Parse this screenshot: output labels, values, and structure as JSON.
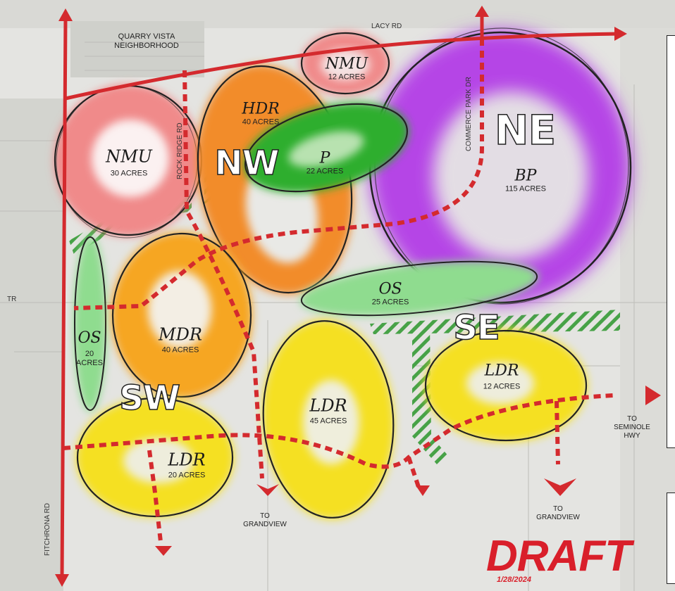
{
  "map": {
    "roads": {
      "lacy": "LACY RD",
      "rock_ridge": "ROCK RIDGE RD",
      "commerce_park": "COMMERCE PARK DR",
      "fitchrona": "FITCHRONA   RD",
      "edge_left": "TR"
    },
    "neighborhood": "QUARRY VISTA\nNEIGHBORHOOD",
    "quadrants": {
      "nw": "NW",
      "ne": "NE",
      "sw": "SW",
      "se": "SE"
    },
    "zones": [
      {
        "code": "NMU",
        "acres": "12 ACRES",
        "color": "#f08a8a"
      },
      {
        "code": "NMU",
        "acres": "30 ACRES",
        "color": "#f08a8a"
      },
      {
        "code": "HDR",
        "acres": "40 ACRES",
        "color": "#f28c2c"
      },
      {
        "code": "P",
        "acres": "22 ACRES",
        "color": "#2fae2f"
      },
      {
        "code": "BP",
        "acres": "115 ACRES",
        "color": "#b544e6"
      },
      {
        "code": "OS",
        "acres": "25 ACRES",
        "color": "#8fdc8f"
      },
      {
        "code": "OS",
        "acres": "20\nACRES",
        "color": "#8fdc8f"
      },
      {
        "code": "MDR",
        "acres": "40 ACRES",
        "color": "#f6a623"
      },
      {
        "code": "LDR",
        "acres": "45 ACRES",
        "color": "#f5e020"
      },
      {
        "code": "LDR",
        "acres": "12 ACRES",
        "color": "#f5e020"
      },
      {
        "code": "LDR",
        "acres": "20 ACRES",
        "color": "#f5e020"
      }
    ],
    "destinations": {
      "grandview_1": "TO\nGRANDVIEW",
      "grandview_2": "TO\nGRANDVIEW",
      "seminole": "TO\nSEMINOLE\nHWY"
    },
    "stamp": {
      "text": "DRAFT",
      "date": "1/28/2024"
    },
    "colors": {
      "road_arrow": "#d42a2e",
      "hatch": "#3f9f3f",
      "outline": "#222222"
    }
  }
}
